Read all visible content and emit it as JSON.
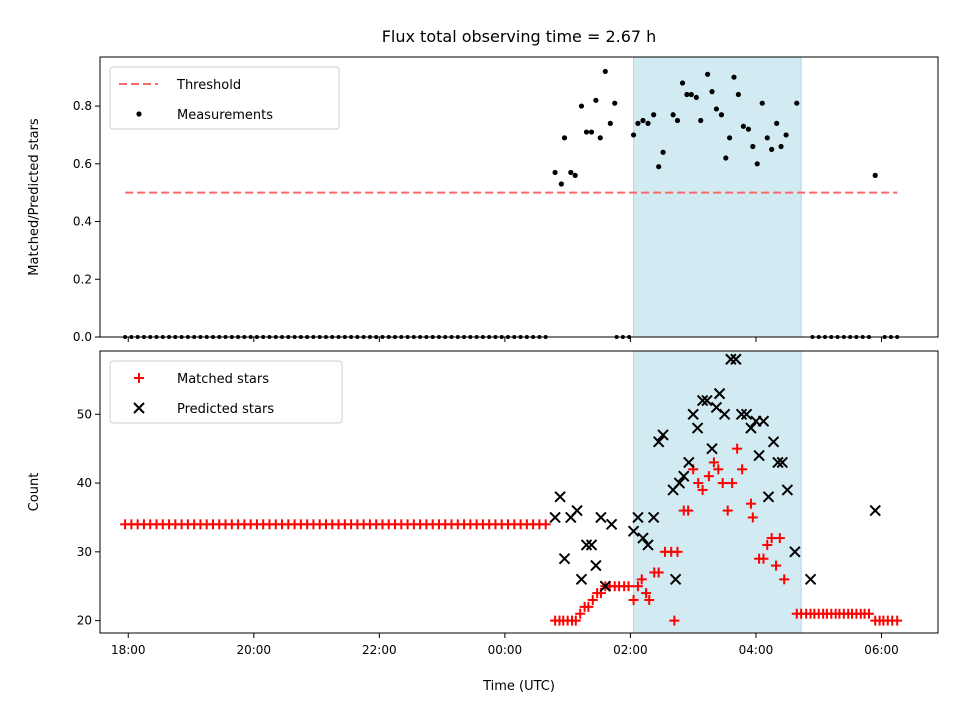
{
  "chart_data": {
    "title": "Flux total observing time = 2.67 h",
    "x_axis": {
      "label": "Time (UTC)",
      "range_hours": [
        -6.45,
        6.9
      ],
      "ticks": [
        {
          "h": -6,
          "label": "18:00"
        },
        {
          "h": -4,
          "label": "20:00"
        },
        {
          "h": -2,
          "label": "22:00"
        },
        {
          "h": 0,
          "label": "00:00"
        },
        {
          "h": 2,
          "label": "02:00"
        },
        {
          "h": 4,
          "label": "04:00"
        },
        {
          "h": 6,
          "label": "06:00"
        }
      ]
    },
    "observing_window_hours": [
      2.05,
      4.72
    ],
    "observing_window_color": "#add8e6",
    "panels": [
      {
        "type": "scatter",
        "ylabel": "Matched/Predicted stars",
        "ylim": [
          0,
          0.97
        ],
        "yticks": [
          {
            "v": 0,
            "label": "0.0"
          },
          {
            "v": 0.2,
            "label": "0.2"
          },
          {
            "v": 0.4,
            "label": "0.4"
          },
          {
            "v": 0.6,
            "label": "0.6"
          },
          {
            "v": 0.8,
            "label": "0.8"
          }
        ],
        "legend": [
          {
            "label": "Threshold",
            "color": "#ff6666",
            "marker": "dash"
          },
          {
            "label": "Measurements",
            "color": "#000000",
            "marker": "dot"
          }
        ],
        "threshold": {
          "value": 0.5,
          "x_start": -6.05,
          "x_end": 6.25,
          "color": "#ff6666"
        },
        "measurements": [
          [
            0.8,
            0.57
          ],
          [
            0.9,
            0.53
          ],
          [
            0.95,
            0.69
          ],
          [
            1.05,
            0.57
          ],
          [
            1.12,
            0.56
          ],
          [
            1.22,
            0.8
          ],
          [
            1.3,
            0.71
          ],
          [
            1.38,
            0.71
          ],
          [
            1.45,
            0.82
          ],
          [
            1.52,
            0.69
          ],
          [
            1.6,
            0.92
          ],
          [
            1.68,
            0.74
          ],
          [
            1.75,
            0.81
          ],
          [
            2.05,
            0.7
          ],
          [
            2.12,
            0.74
          ],
          [
            2.2,
            0.75
          ],
          [
            2.28,
            0.74
          ],
          [
            2.37,
            0.77
          ],
          [
            2.45,
            0.59
          ],
          [
            2.52,
            0.64
          ],
          [
            2.68,
            0.77
          ],
          [
            2.75,
            0.75
          ],
          [
            2.83,
            0.88
          ],
          [
            2.9,
            0.84
          ],
          [
            2.97,
            0.84
          ],
          [
            3.05,
            0.83
          ],
          [
            3.12,
            0.75
          ],
          [
            3.23,
            0.91
          ],
          [
            3.3,
            0.85
          ],
          [
            3.37,
            0.79
          ],
          [
            3.45,
            0.77
          ],
          [
            3.52,
            0.62
          ],
          [
            3.58,
            0.69
          ],
          [
            3.65,
            0.9
          ],
          [
            3.72,
            0.84
          ],
          [
            3.8,
            0.73
          ],
          [
            3.88,
            0.72
          ],
          [
            3.95,
            0.66
          ],
          [
            4.02,
            0.6
          ],
          [
            4.1,
            0.81
          ],
          [
            4.18,
            0.69
          ],
          [
            4.25,
            0.65
          ],
          [
            4.33,
            0.74
          ],
          [
            4.4,
            0.66
          ],
          [
            4.48,
            0.7
          ],
          [
            4.65,
            0.81
          ],
          [
            5.9,
            0.56
          ]
        ],
        "zero_ranges": [
          {
            "start": -6.05,
            "end": 0.72,
            "step": 0.1
          },
          {
            "start": 1.78,
            "end": 1.98,
            "step": 0.1
          },
          {
            "start": 4.9,
            "end": 5.8,
            "step": 0.1
          },
          {
            "start": 6.05,
            "end": 6.25,
            "step": 0.1
          }
        ]
      },
      {
        "type": "scatter",
        "ylabel": "Count",
        "ylim": [
          18.2,
          59.2
        ],
        "yticks": [
          {
            "v": 20,
            "label": "20"
          },
          {
            "v": 30,
            "label": "30"
          },
          {
            "v": 40,
            "label": "40"
          },
          {
            "v": 50,
            "label": "50"
          }
        ],
        "legend": [
          {
            "label": "Matched stars",
            "color": "#ff0000",
            "marker": "plus"
          },
          {
            "label": "Predicted stars",
            "color": "#000000",
            "marker": "x"
          }
        ],
        "const_range": {
          "start": -6.05,
          "end": 0.72,
          "step": 0.1,
          "value": 34
        },
        "matched": [
          [
            0.8,
            20
          ],
          [
            0.87,
            20
          ],
          [
            0.93,
            20
          ],
          [
            1.0,
            20
          ],
          [
            1.07,
            20
          ],
          [
            1.13,
            20
          ],
          [
            1.2,
            21
          ],
          [
            1.27,
            22
          ],
          [
            1.33,
            22
          ],
          [
            1.4,
            23
          ],
          [
            1.47,
            24
          ],
          [
            1.53,
            24
          ],
          [
            1.6,
            25
          ],
          [
            1.67,
            25
          ],
          [
            1.75,
            25
          ],
          [
            1.82,
            25
          ],
          [
            1.9,
            25
          ],
          [
            1.97,
            25
          ],
          [
            2.05,
            23
          ],
          [
            2.12,
            25
          ],
          [
            2.18,
            26
          ],
          [
            2.25,
            24
          ],
          [
            2.3,
            23
          ],
          [
            2.38,
            27
          ],
          [
            2.45,
            27
          ],
          [
            2.55,
            30
          ],
          [
            2.65,
            30
          ],
          [
            2.75,
            30
          ],
          [
            2.7,
            20
          ],
          [
            2.85,
            36
          ],
          [
            2.92,
            36
          ],
          [
            3.0,
            42
          ],
          [
            3.08,
            40
          ],
          [
            3.15,
            39
          ],
          [
            3.25,
            41
          ],
          [
            3.33,
            43
          ],
          [
            3.4,
            42
          ],
          [
            3.47,
            40
          ],
          [
            3.55,
            36
          ],
          [
            3.62,
            40
          ],
          [
            3.7,
            45
          ],
          [
            3.78,
            42
          ],
          [
            3.92,
            37
          ],
          [
            3.95,
            35
          ],
          [
            4.05,
            29
          ],
          [
            4.12,
            29
          ],
          [
            4.18,
            31
          ],
          [
            4.25,
            32
          ],
          [
            4.32,
            28
          ],
          [
            4.38,
            32
          ],
          [
            4.45,
            26
          ],
          [
            4.65,
            21
          ],
          [
            4.72,
            21
          ],
          [
            4.8,
            21
          ],
          [
            4.87,
            21
          ],
          [
            4.93,
            21
          ],
          [
            5.0,
            21
          ],
          [
            5.07,
            21
          ],
          [
            5.13,
            21
          ],
          [
            5.2,
            21
          ],
          [
            5.27,
            21
          ],
          [
            5.33,
            21
          ],
          [
            5.4,
            21
          ],
          [
            5.47,
            21
          ],
          [
            5.53,
            21
          ],
          [
            5.6,
            21
          ],
          [
            5.67,
            21
          ],
          [
            5.73,
            21
          ],
          [
            5.8,
            21
          ],
          [
            5.9,
            20
          ],
          [
            5.97,
            20
          ],
          [
            6.03,
            20
          ],
          [
            6.1,
            20
          ],
          [
            6.17,
            20
          ],
          [
            6.25,
            20
          ]
        ],
        "predicted": [
          [
            0.8,
            35
          ],
          [
            0.88,
            38
          ],
          [
            0.95,
            29
          ],
          [
            1.05,
            35
          ],
          [
            1.15,
            36
          ],
          [
            1.22,
            26
          ],
          [
            1.3,
            31
          ],
          [
            1.38,
            31
          ],
          [
            1.45,
            28
          ],
          [
            1.53,
            35
          ],
          [
            1.6,
            25
          ],
          [
            1.7,
            34
          ],
          [
            2.05,
            33
          ],
          [
            2.12,
            35
          ],
          [
            2.2,
            32
          ],
          [
            2.28,
            31
          ],
          [
            2.37,
            35
          ],
          [
            2.45,
            46
          ],
          [
            2.52,
            47
          ],
          [
            2.68,
            39
          ],
          [
            2.72,
            26
          ],
          [
            2.78,
            40
          ],
          [
            2.85,
            41
          ],
          [
            2.93,
            43
          ],
          [
            3.0,
            50
          ],
          [
            3.07,
            48
          ],
          [
            3.15,
            52
          ],
          [
            3.22,
            52
          ],
          [
            3.3,
            45
          ],
          [
            3.37,
            51
          ],
          [
            3.42,
            53
          ],
          [
            3.5,
            50
          ],
          [
            3.6,
            58
          ],
          [
            3.68,
            58
          ],
          [
            3.77,
            50
          ],
          [
            3.85,
            50
          ],
          [
            3.92,
            48
          ],
          [
            4.0,
            49
          ],
          [
            4.05,
            44
          ],
          [
            4.12,
            49
          ],
          [
            4.2,
            38
          ],
          [
            4.28,
            46
          ],
          [
            4.35,
            43
          ],
          [
            4.42,
            43
          ],
          [
            4.5,
            39
          ],
          [
            4.62,
            30
          ],
          [
            4.87,
            26
          ],
          [
            5.9,
            36
          ]
        ]
      }
    ]
  }
}
